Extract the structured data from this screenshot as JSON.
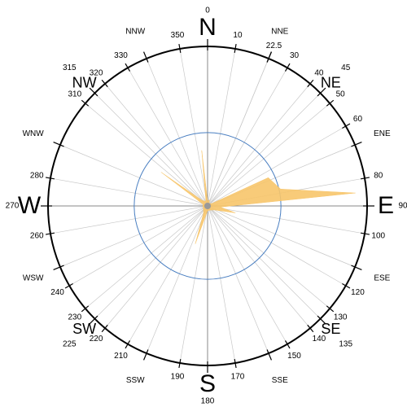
{
  "chart_data": {
    "type": "wind_rose",
    "x": [
      0,
      15,
      30,
      45,
      60,
      65,
      77,
      85,
      95,
      104,
      120,
      150,
      180,
      198,
      210,
      240,
      270,
      290,
      306,
      315,
      340,
      354
    ],
    "values": [
      3,
      4,
      2,
      2,
      3,
      42,
      47,
      93,
      8,
      18,
      5,
      3,
      3,
      25,
      5,
      3,
      3,
      3,
      36,
      5,
      3,
      35
    ],
    "color": "#f7c56a",
    "rlim": [
      0,
      100
    ],
    "rings": [
      46
    ],
    "ring_color": "#4a7fc1",
    "xticks": [
      0,
      10,
      22.5,
      30,
      40,
      45,
      50,
      60,
      80,
      90,
      100,
      120,
      130,
      135,
      140,
      150,
      170,
      180,
      190,
      210,
      220,
      225,
      230,
      240,
      260,
      270,
      280,
      310,
      315,
      320,
      330,
      350
    ],
    "direction_labels": [
      {
        "value": 22.5,
        "label": "NNE"
      },
      {
        "value": 67.5,
        "label": "ENE"
      },
      {
        "value": 112.5,
        "label": "ESE"
      },
      {
        "value": 157.5,
        "label": "SSE"
      },
      {
        "value": 202.5,
        "label": "SSW"
      },
      {
        "value": 247.5,
        "label": "WSW"
      },
      {
        "value": 292.5,
        "label": "WNW"
      },
      {
        "value": 337.5,
        "label": "NNW"
      }
    ],
    "compass_labels": [
      {
        "value": 0,
        "label": "N"
      },
      {
        "value": 45,
        "label": "NE"
      },
      {
        "value": 90,
        "label": "E"
      },
      {
        "value": 135,
        "label": "SE"
      },
      {
        "value": 180,
        "label": "S"
      },
      {
        "value": 225,
        "label": "SW"
      },
      {
        "value": 270,
        "label": "W"
      },
      {
        "value": 315,
        "label": "NW"
      }
    ]
  }
}
